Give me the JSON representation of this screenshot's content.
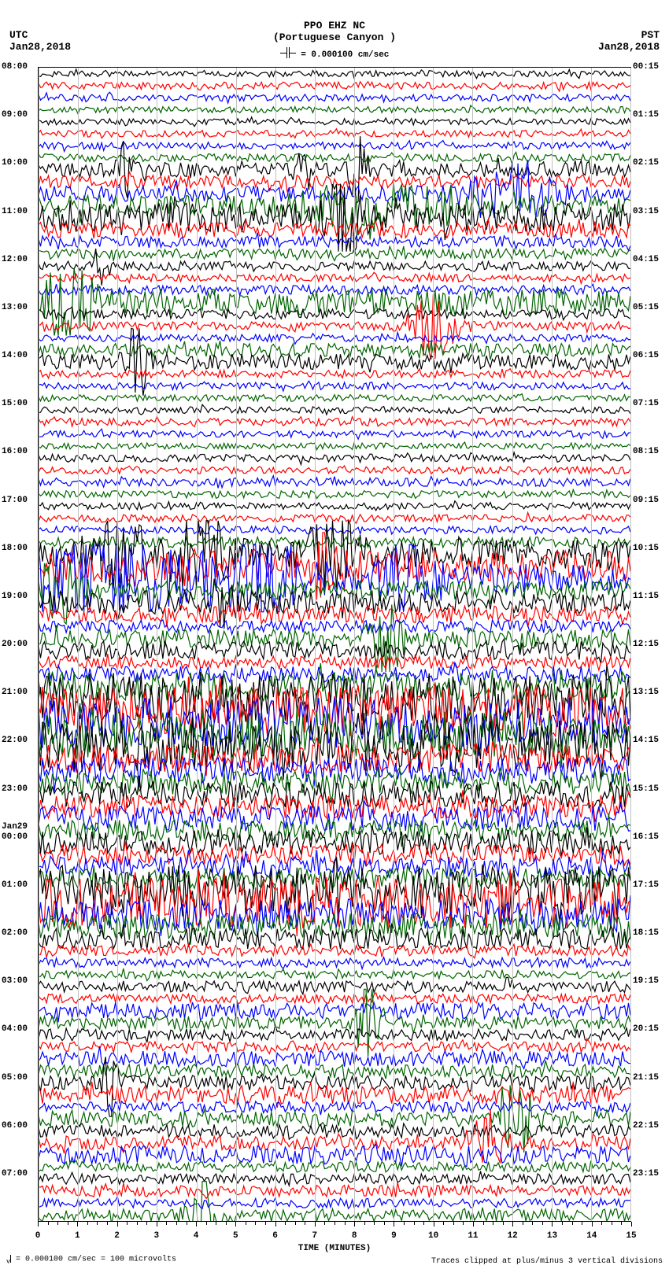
{
  "title": {
    "main": "PPO EHZ NC",
    "sub": "(Portuguese Canyon )",
    "scale": "= 0.000100 cm/sec"
  },
  "tz": {
    "left": "UTC",
    "right": "PST"
  },
  "date": {
    "left": "Jan28,2018",
    "right": "Jan28,2018"
  },
  "footer": {
    "left": "= 0.000100 cm/sec =     100 microvolts",
    "right": "Traces clipped at plus/minus 3 vertical divisions"
  },
  "chart": {
    "type": "seismogram",
    "background": "#ffffff",
    "grid_color": "#c0c0c0",
    "text_color": "#000000",
    "font_family": "Courier New, monospace",
    "title_fontsize": 13,
    "label_fontsize": 11,
    "line_width": 1.2,
    "colors": [
      "#000000",
      "#ff0000",
      "#0000ff",
      "#006400"
    ],
    "x": {
      "min": 0,
      "max": 15,
      "ticks": [
        0,
        1,
        2,
        3,
        4,
        5,
        6,
        7,
        8,
        9,
        10,
        11,
        12,
        13,
        14,
        15
      ],
      "minor_per_major": 3,
      "title": "TIME (MINUTES)"
    },
    "traces_per_hour": 4,
    "hours": 24,
    "day_break": {
      "index": 64,
      "label": "Jan29"
    },
    "left_labels": [
      "08:00",
      "09:00",
      "10:00",
      "11:00",
      "12:00",
      "13:00",
      "14:00",
      "15:00",
      "16:00",
      "17:00",
      "18:00",
      "19:00",
      "20:00",
      "21:00",
      "22:00",
      "23:00",
      "00:00",
      "01:00",
      "02:00",
      "03:00",
      "04:00",
      "05:00",
      "06:00",
      "07:00"
    ],
    "right_labels": [
      "00:15",
      "01:15",
      "02:15",
      "03:15",
      "04:15",
      "05:15",
      "06:15",
      "07:15",
      "08:15",
      "09:15",
      "10:15",
      "11:15",
      "12:15",
      "13:15",
      "14:15",
      "15:15",
      "16:15",
      "17:15",
      "18:15",
      "19:15",
      "20:15",
      "21:15",
      "22:15",
      "23:15"
    ],
    "amplitude": {
      "base_noise": 0.12,
      "per_trace": [
        0.12,
        0.14,
        0.13,
        0.12,
        0.12,
        0.13,
        0.14,
        0.15,
        0.28,
        0.25,
        0.3,
        0.4,
        0.55,
        0.3,
        0.22,
        0.2,
        0.18,
        0.15,
        0.18,
        0.5,
        0.2,
        0.16,
        0.14,
        0.25,
        0.3,
        0.15,
        0.14,
        0.13,
        0.13,
        0.15,
        0.13,
        0.12,
        0.15,
        0.14,
        0.16,
        0.14,
        0.13,
        0.14,
        0.15,
        0.2,
        0.55,
        0.6,
        0.55,
        0.35,
        0.45,
        0.32,
        0.25,
        0.35,
        0.35,
        0.24,
        0.3,
        0.55,
        0.95,
        1.0,
        0.95,
        0.9,
        0.98,
        0.55,
        0.5,
        0.45,
        0.5,
        0.45,
        0.48,
        0.4,
        0.45,
        0.4,
        0.4,
        0.38,
        0.95,
        0.98,
        0.6,
        0.5,
        0.4,
        0.2,
        0.18,
        0.15,
        0.22,
        0.18,
        0.3,
        0.25,
        0.22,
        0.2,
        0.3,
        0.25,
        0.28,
        0.35,
        0.22,
        0.3,
        0.25,
        0.26,
        0.35,
        0.2,
        0.2,
        0.22,
        0.18,
        0.24
      ],
      "events": [
        {
          "trace": 8,
          "x": 2.2,
          "amp": 0.9,
          "w": 0.3
        },
        {
          "trace": 8,
          "x": 6.7,
          "amp": 1.2,
          "w": 0.25
        },
        {
          "trace": 8,
          "x": 8.1,
          "amp": 1.3,
          "w": 0.3
        },
        {
          "trace": 10,
          "x": 12.0,
          "amp": 0.9,
          "w": 1.5
        },
        {
          "trace": 11,
          "x": 8.5,
          "amp": 0.9,
          "w": 2.0
        },
        {
          "trace": 12,
          "x": 7.7,
          "amp": 2.0,
          "w": 0.5
        },
        {
          "trace": 16,
          "x": 1.6,
          "amp": 1.2,
          "w": 0.2
        },
        {
          "trace": 19,
          "x": 0.8,
          "amp": 2.2,
          "w": 0.7
        },
        {
          "trace": 21,
          "x": 10.0,
          "amp": 1.2,
          "w": 0.8
        },
        {
          "trace": 24,
          "x": 2.5,
          "amp": 1.5,
          "w": 0.4
        },
        {
          "trace": 40,
          "x": 2.0,
          "amp": 1.2,
          "w": 1.0
        },
        {
          "trace": 40,
          "x": 4.0,
          "amp": 1.5,
          "w": 1.0
        },
        {
          "trace": 40,
          "x": 7.5,
          "amp": 1.3,
          "w": 0.8
        },
        {
          "trace": 41,
          "x": 7.3,
          "amp": 1.5,
          "w": 0.4
        },
        {
          "trace": 42,
          "x": 1.5,
          "amp": 1.8,
          "w": 2.5
        },
        {
          "trace": 42,
          "x": 5.5,
          "amp": 1.6,
          "w": 1.5
        },
        {
          "trace": 42,
          "x": 9.3,
          "amp": 1.6,
          "w": 0.7
        },
        {
          "trace": 43,
          "x": 0.5,
          "amp": 1.8,
          "w": 0.6
        },
        {
          "trace": 44,
          "x": 4.6,
          "amp": 1.2,
          "w": 0.3
        },
        {
          "trace": 47,
          "x": 8.8,
          "amp": 1.6,
          "w": 0.5
        },
        {
          "trace": 79,
          "x": 8.4,
          "amp": 1.8,
          "w": 0.4
        },
        {
          "trace": 79,
          "x": 8.2,
          "amp": 1.0,
          "w": 0.2
        },
        {
          "trace": 84,
          "x": 1.8,
          "amp": 1.5,
          "w": 0.3
        },
        {
          "trace": 87,
          "x": 12.2,
          "amp": 2.3,
          "w": 0.5
        },
        {
          "trace": 89,
          "x": 11.4,
          "amp": 1.3,
          "w": 0.5
        },
        {
          "trace": 95,
          "x": 4.2,
          "amp": 1.3,
          "w": 0.5
        }
      ]
    }
  }
}
